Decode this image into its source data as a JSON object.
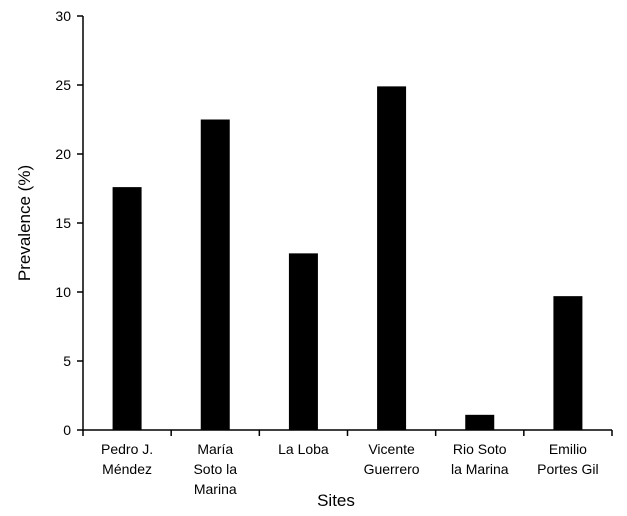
{
  "chart_data": {
    "type": "bar",
    "categories": [
      [
        "Pedro J.",
        "Méndez"
      ],
      [
        "María",
        "Soto la",
        "Marina"
      ],
      [
        "La Loba"
      ],
      [
        "Vicente",
        "Guerrero"
      ],
      [
        "Rio Soto",
        "la Marina"
      ],
      [
        "Emilio",
        "Portes Gil"
      ]
    ],
    "values": [
      17.6,
      22.5,
      12.8,
      24.9,
      1.1,
      9.7
    ],
    "title": "",
    "xlabel": "Sites",
    "ylabel": "Prevalence (%)",
    "ylim": [
      0,
      30
    ],
    "yticks": [
      0,
      5,
      10,
      15,
      20,
      25,
      30
    ],
    "bar_color": "#000000",
    "grid": false,
    "legend": false
  }
}
